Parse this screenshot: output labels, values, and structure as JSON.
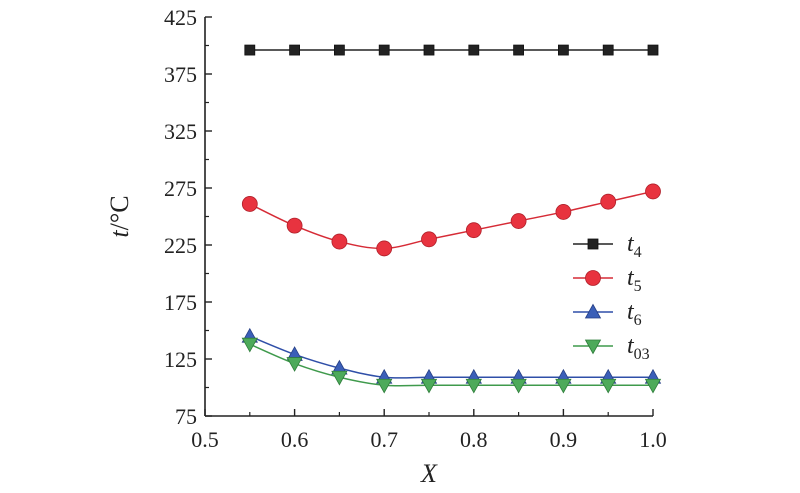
{
  "chart_data": {
    "type": "line",
    "title": "",
    "xlabel": "X",
    "ylabel": "t/°C",
    "ylabel_parts": {
      "var": "t",
      "unit": "/°C"
    },
    "xlim": [
      0.5,
      1.0
    ],
    "ylim": [
      75,
      425
    ],
    "xticks": [
      0.5,
      0.6,
      0.7,
      0.8,
      0.9,
      1.0
    ],
    "xtick_labels": [
      "0.5",
      "0.6",
      "0.7",
      "0.8",
      "0.9",
      "1.0"
    ],
    "yticks": [
      75,
      125,
      175,
      225,
      275,
      325,
      375,
      425
    ],
    "ytick_labels": [
      "75",
      "125",
      "175",
      "225",
      "275",
      "325",
      "375",
      "425"
    ],
    "grid": false,
    "legend_position": "right-middle",
    "x": [
      0.55,
      0.6,
      0.65,
      0.7,
      0.75,
      0.8,
      0.85,
      0.9,
      0.95,
      1.0
    ],
    "series": [
      {
        "name": "t4",
        "base": "t",
        "sub": "4",
        "marker": "square",
        "color": "#222222",
        "line_color": "#222222",
        "values": [
          396,
          396,
          396,
          396,
          396,
          396,
          396,
          396,
          396,
          396
        ]
      },
      {
        "name": "t5",
        "base": "t",
        "sub": "5",
        "marker": "circle",
        "color": "#e8333f",
        "line_color": "#d62b36",
        "values": [
          261,
          242,
          228,
          222,
          230,
          238,
          246,
          254,
          263,
          272
        ]
      },
      {
        "name": "t6",
        "base": "t",
        "sub": "6",
        "marker": "triangle-up",
        "color": "#3b5fb8",
        "line_color": "#2f4fa8",
        "values": [
          145,
          129,
          117,
          109,
          109,
          109,
          109,
          109,
          109,
          109
        ]
      },
      {
        "name": "t03",
        "base": "t",
        "sub": "03",
        "marker": "triangle-down",
        "color": "#4daa5a",
        "line_color": "#3f9a4c",
        "values": [
          138,
          121,
          109,
          102,
          102,
          102,
          102,
          102,
          102,
          102
        ]
      }
    ]
  }
}
